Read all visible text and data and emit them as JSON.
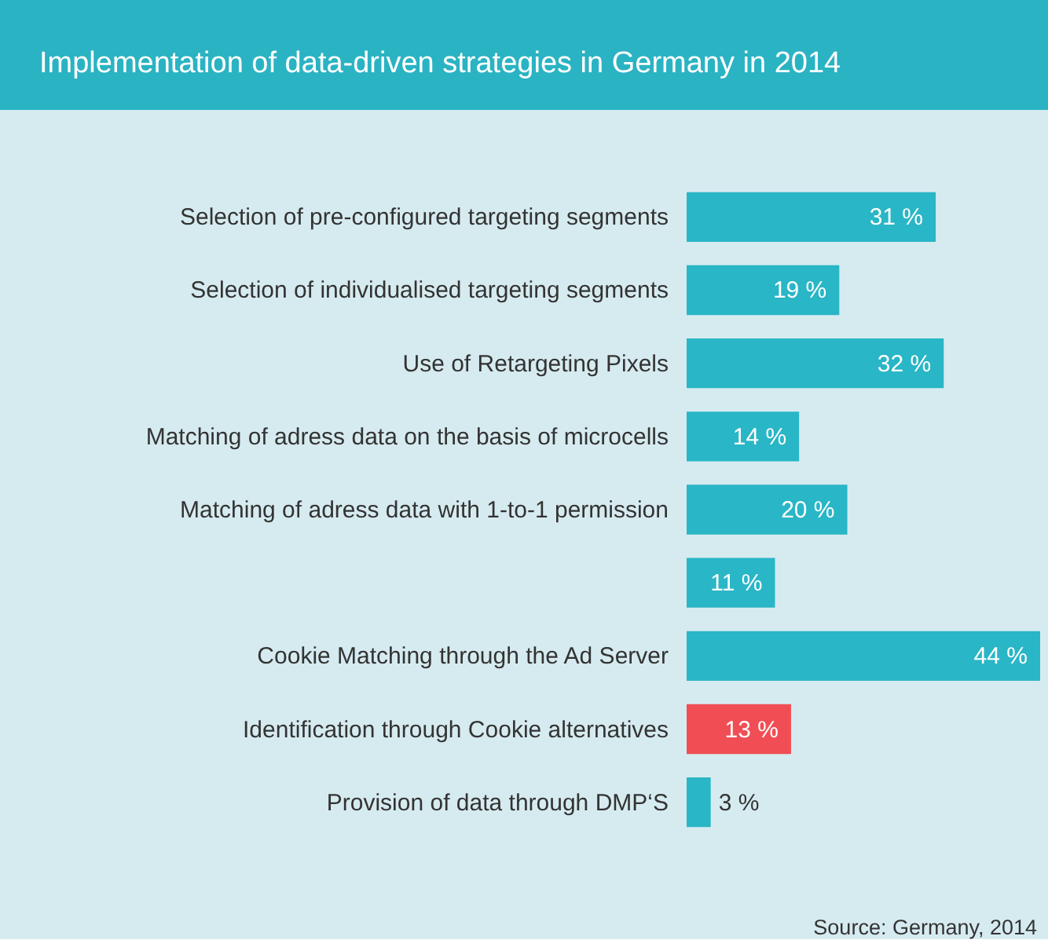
{
  "chart_data": {
    "type": "bar",
    "orientation": "horizontal",
    "title": "Implementation of data-driven strategies in Germany in 2014",
    "categories": [
      "Selection of pre-configured targeting segments",
      "Selection of individualised targeting segments",
      "Use of Retargeting Pixels",
      "Matching of adress data on the basis of microcells",
      "Matching of adress data with 1-to-1 permission",
      null,
      "Cookie Matching through the Ad Server",
      "Identification through Cookie alternatives",
      "Provision of data through DMP‘S"
    ],
    "values": [
      31,
      19,
      32,
      14,
      20,
      11,
      44,
      13,
      3
    ],
    "value_labels": [
      "31 %",
      "19 %",
      "32 %",
      "14 %",
      "20 %",
      "11 %",
      "44 %",
      "13 %",
      "3 %"
    ],
    "colors": [
      "#29b6c6",
      "#29b6c6",
      "#29b6c6",
      "#29b6c6",
      "#29b6c6",
      "#29b6c6",
      "#29b6c6",
      "#f04e54",
      "#29b6c6"
    ],
    "annotations": [
      "Source: Germany, 2014"
    ],
    "grid": false
  }
}
